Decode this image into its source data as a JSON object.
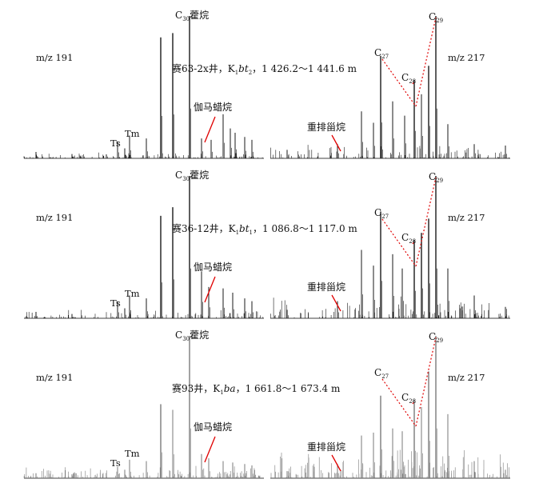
{
  "chart_data": [
    {
      "type": "line",
      "title": "",
      "well_label": {
        "prefix": "赛63-2x井，K",
        "sub": "1",
        "formation": "bt",
        "formation_sub": "2",
        "suffix": "，1 426.2～1 441.6 m"
      },
      "left": {
        "mz_label": "m/z 191",
        "c30_label": {
          "main": "C",
          "sub": "30",
          "suffix": "藿烷"
        },
        "ts_label": "Ts",
        "tm_label": "Tm",
        "gammacerane_label": "伽马蜡烷",
        "peaks": [
          [
            0.05,
            0.045
          ],
          [
            0.2,
            0.03
          ],
          [
            0.39,
            0.12
          ],
          [
            0.42,
            0.07
          ],
          [
            0.44,
            0.16
          ],
          [
            0.51,
            0.14
          ],
          [
            0.57,
            0.85
          ],
          [
            0.62,
            0.88
          ],
          [
            0.69,
            1.0
          ],
          [
            0.74,
            0.14
          ],
          [
            0.78,
            0.13
          ],
          [
            0.83,
            0.31
          ],
          [
            0.86,
            0.21
          ],
          [
            0.88,
            0.18
          ],
          [
            0.92,
            0.15
          ],
          [
            0.95,
            0.13
          ]
        ]
      },
      "right": {
        "mz_label": "m/z 217",
        "c27_label": {
          "main": "C",
          "sub": "27"
        },
        "c28_label": {
          "main": "C",
          "sub": "28"
        },
        "c29_label": {
          "main": "C",
          "sub": "29"
        },
        "diasterane_label": "重排甾烷",
        "peaks": [
          [
            0.07,
            0.06
          ],
          [
            0.28,
            0.1
          ],
          [
            0.38,
            0.33
          ],
          [
            0.43,
            0.25
          ],
          [
            0.46,
            0.72
          ],
          [
            0.51,
            0.4
          ],
          [
            0.56,
            0.3
          ],
          [
            0.6,
            0.55
          ],
          [
            0.63,
            0.45
          ],
          [
            0.66,
            0.65
          ],
          [
            0.69,
            1.0
          ],
          [
            0.74,
            0.24
          ],
          [
            0.85,
            0.1
          ],
          [
            0.98,
            0.09
          ]
        ]
      }
    },
    {
      "type": "line",
      "title": "",
      "well_label": {
        "prefix": "赛36-12井，K",
        "sub": "1",
        "formation": "bt",
        "formation_sub": "1",
        "suffix": "，1 086.8～1 117.0 m"
      },
      "left": {
        "mz_label": "m/z 191",
        "c30_label": {
          "main": "C",
          "sub": "30",
          "suffix": "藿烷"
        },
        "ts_label": "Ts",
        "tm_label": "Tm",
        "gammacerane_label": "伽马蜡烷",
        "peaks": [
          [
            0.05,
            0.045
          ],
          [
            0.2,
            0.03
          ],
          [
            0.39,
            0.12
          ],
          [
            0.42,
            0.07
          ],
          [
            0.44,
            0.16
          ],
          [
            0.51,
            0.14
          ],
          [
            0.57,
            0.72
          ],
          [
            0.62,
            0.78
          ],
          [
            0.69,
            1.0
          ],
          [
            0.74,
            0.33
          ],
          [
            0.77,
            0.22
          ],
          [
            0.83,
            0.21
          ],
          [
            0.87,
            0.18
          ],
          [
            0.92,
            0.14
          ],
          [
            0.95,
            0.12
          ]
        ]
      },
      "right": {
        "mz_label": "m/z 217",
        "c27_label": {
          "main": "C",
          "sub": "27"
        },
        "c28_label": {
          "main": "C",
          "sub": "28"
        },
        "c29_label": {
          "main": "C",
          "sub": "29"
        },
        "diasterane_label": "重排甾烷",
        "peaks": [
          [
            0.07,
            0.06
          ],
          [
            0.28,
            0.12
          ],
          [
            0.38,
            0.48
          ],
          [
            0.43,
            0.37
          ],
          [
            0.46,
            0.75
          ],
          [
            0.51,
            0.45
          ],
          [
            0.55,
            0.35
          ],
          [
            0.6,
            0.55
          ],
          [
            0.63,
            0.6
          ],
          [
            0.66,
            0.7
          ],
          [
            0.69,
            1.0
          ],
          [
            0.74,
            0.35
          ],
          [
            0.85,
            0.16
          ],
          [
            0.98,
            0.08
          ]
        ]
      }
    },
    {
      "type": "line",
      "title": "",
      "well_label": {
        "prefix": "赛93井，K",
        "sub": "1",
        "formation": "ba",
        "formation_sub": "",
        "suffix": "，1 661.8～1 673.4 m"
      },
      "left": {
        "mz_label": "m/z 191",
        "c30_label": {
          "main": "C",
          "sub": "30",
          "suffix": "藿烷"
        },
        "ts_label": "Ts",
        "tm_label": "Tm",
        "gammacerane_label": "伽马蜡烷",
        "peaks": [
          [
            0.05,
            0.035
          ],
          [
            0.2,
            0.025
          ],
          [
            0.39,
            0.08
          ],
          [
            0.42,
            0.06
          ],
          [
            0.44,
            0.13
          ],
          [
            0.51,
            0.12
          ],
          [
            0.57,
            0.52
          ],
          [
            0.62,
            0.48
          ],
          [
            0.69,
            1.0
          ],
          [
            0.74,
            0.17
          ],
          [
            0.77,
            0.14
          ],
          [
            0.83,
            0.12
          ],
          [
            0.87,
            0.11
          ],
          [
            0.92,
            0.1
          ],
          [
            0.95,
            0.09
          ]
        ]
      },
      "right": {
        "mz_label": "m/z 217",
        "c27_label": {
          "main": "C",
          "sub": "27"
        },
        "c28_label": {
          "main": "C",
          "sub": "28"
        },
        "c29_label": {
          "main": "C",
          "sub": "29"
        },
        "diasterane_label": "重排甾烷",
        "peaks": [
          [
            0.07,
            0.05
          ],
          [
            0.28,
            0.1
          ],
          [
            0.38,
            0.3
          ],
          [
            0.43,
            0.32
          ],
          [
            0.46,
            0.58
          ],
          [
            0.51,
            0.35
          ],
          [
            0.55,
            0.33
          ],
          [
            0.6,
            0.55
          ],
          [
            0.63,
            0.5
          ],
          [
            0.66,
            0.75
          ],
          [
            0.69,
            1.0
          ],
          [
            0.74,
            0.45
          ],
          [
            0.85,
            0.12
          ],
          [
            0.98,
            0.06
          ]
        ]
      }
    }
  ]
}
